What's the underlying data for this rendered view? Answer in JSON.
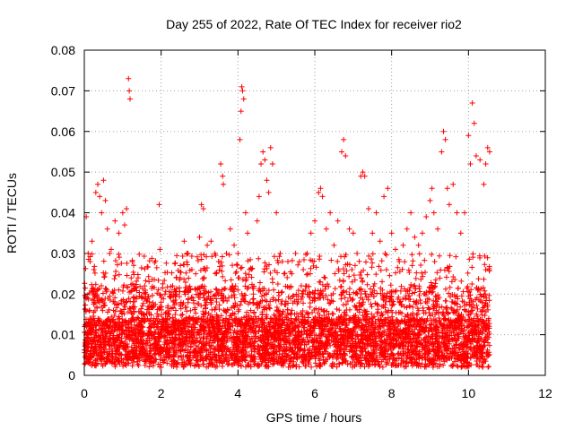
{
  "chart_data": {
    "type": "scatter",
    "title": "Day 255 of 2022, Rate Of TEC Index for receiver rio2",
    "xlabel": "GPS time / hours",
    "ylabel": "ROTI / TECUs",
    "xlim": [
      0,
      12
    ],
    "ylim": [
      0,
      0.08
    ],
    "x_ticks": [
      "0",
      "2",
      "4",
      "6",
      "8",
      "10",
      "12"
    ],
    "y_ticks": [
      "0",
      "0.01",
      "0.02",
      "0.03",
      "0.04",
      "0.05",
      "0.06",
      "0.07",
      "0.08"
    ],
    "x_tick_values": [
      0,
      2,
      4,
      6,
      8,
      10,
      12
    ],
    "y_tick_values": [
      0,
      0.01,
      0.02,
      0.03,
      0.04,
      0.05,
      0.06,
      0.07,
      0.08
    ],
    "grid": true,
    "marker": "+",
    "color": "#ff0000",
    "data_x_range": [
      0,
      10.55
    ],
    "series": [
      {
        "points": [
          [
            0.05,
            0.039
          ],
          [
            0.1,
            0.03
          ],
          [
            0.15,
            0.028
          ],
          [
            0.2,
            0.033
          ],
          [
            0.25,
            0.026
          ],
          [
            0.3,
            0.045
          ],
          [
            0.35,
            0.047
          ],
          [
            0.4,
            0.044
          ],
          [
            0.45,
            0.04
          ],
          [
            0.5,
            0.048
          ],
          [
            0.55,
            0.043
          ],
          [
            0.6,
            0.036
          ],
          [
            0.7,
            0.031
          ],
          [
            0.8,
            0.038
          ],
          [
            0.9,
            0.035
          ],
          [
            1.0,
            0.04
          ],
          [
            1.05,
            0.037
          ],
          [
            1.1,
            0.041
          ],
          [
            1.15,
            0.073
          ],
          [
            1.17,
            0.07
          ],
          [
            1.19,
            0.068
          ],
          [
            1.25,
            0.028
          ],
          [
            1.3,
            0.022
          ],
          [
            1.4,
            0.024
          ],
          [
            1.5,
            0.019
          ],
          [
            1.6,
            0.02
          ],
          [
            1.7,
            0.017
          ],
          [
            1.95,
            0.042
          ],
          [
            1.97,
            0.031
          ],
          [
            2.0,
            0.018
          ],
          [
            2.1,
            0.02
          ],
          [
            2.2,
            0.015
          ],
          [
            2.3,
            0.022
          ],
          [
            2.4,
            0.024
          ],
          [
            2.5,
            0.027
          ],
          [
            2.6,
            0.033
          ],
          [
            2.7,
            0.03
          ],
          [
            2.8,
            0.026
          ],
          [
            2.9,
            0.025
          ],
          [
            3.0,
            0.034
          ],
          [
            3.05,
            0.042
          ],
          [
            3.1,
            0.041
          ],
          [
            3.2,
            0.032
          ],
          [
            3.3,
            0.033
          ],
          [
            3.4,
            0.03
          ],
          [
            3.5,
            0.028
          ],
          [
            3.55,
            0.052
          ],
          [
            3.6,
            0.049
          ],
          [
            3.62,
            0.047
          ],
          [
            3.7,
            0.03
          ],
          [
            3.8,
            0.036
          ],
          [
            3.9,
            0.032
          ],
          [
            4.0,
            0.03
          ],
          [
            4.05,
            0.058
          ],
          [
            4.08,
            0.065
          ],
          [
            4.1,
            0.071
          ],
          [
            4.12,
            0.07
          ],
          [
            4.15,
            0.068
          ],
          [
            4.2,
            0.04
          ],
          [
            4.25,
            0.035
          ],
          [
            4.3,
            0.026
          ],
          [
            4.4,
            0.02
          ],
          [
            4.5,
            0.038
          ],
          [
            4.55,
            0.044
          ],
          [
            4.6,
            0.052
          ],
          [
            4.65,
            0.055
          ],
          [
            4.7,
            0.053
          ],
          [
            4.75,
            0.048
          ],
          [
            4.8,
            0.045
          ],
          [
            4.85,
            0.056
          ],
          [
            4.9,
            0.052
          ],
          [
            5.0,
            0.04
          ],
          [
            5.1,
            0.03
          ],
          [
            5.2,
            0.025
          ],
          [
            5.3,
            0.028
          ],
          [
            5.4,
            0.025
          ],
          [
            5.5,
            0.03
          ],
          [
            5.6,
            0.028
          ],
          [
            5.7,
            0.026
          ],
          [
            5.8,
            0.03
          ],
          [
            5.9,
            0.035
          ],
          [
            6.0,
            0.038
          ],
          [
            6.1,
            0.045
          ],
          [
            6.15,
            0.046
          ],
          [
            6.2,
            0.044
          ],
          [
            6.3,
            0.036
          ],
          [
            6.4,
            0.04
          ],
          [
            6.5,
            0.032
          ],
          [
            6.6,
            0.038
          ],
          [
            6.7,
            0.055
          ],
          [
            6.75,
            0.058
          ],
          [
            6.8,
            0.054
          ],
          [
            6.9,
            0.036
          ],
          [
            7.0,
            0.035
          ],
          [
            7.1,
            0.03
          ],
          [
            7.2,
            0.049
          ],
          [
            7.25,
            0.05
          ],
          [
            7.3,
            0.049
          ],
          [
            7.4,
            0.041
          ],
          [
            7.5,
            0.035
          ],
          [
            7.6,
            0.04
          ],
          [
            7.7,
            0.033
          ],
          [
            7.8,
            0.044
          ],
          [
            7.9,
            0.046
          ],
          [
            8.0,
            0.035
          ],
          [
            8.1,
            0.031
          ],
          [
            8.2,
            0.028
          ],
          [
            8.3,
            0.032
          ],
          [
            8.4,
            0.036
          ],
          [
            8.5,
            0.04
          ],
          [
            8.6,
            0.034
          ],
          [
            8.7,
            0.032
          ],
          [
            8.8,
            0.035
          ],
          [
            8.9,
            0.039
          ],
          [
            9.0,
            0.043
          ],
          [
            9.05,
            0.046
          ],
          [
            9.1,
            0.04
          ],
          [
            9.2,
            0.036
          ],
          [
            9.3,
            0.055
          ],
          [
            9.35,
            0.06
          ],
          [
            9.4,
            0.058
          ],
          [
            9.45,
            0.046
          ],
          [
            9.5,
            0.042
          ],
          [
            9.6,
            0.047
          ],
          [
            9.7,
            0.04
          ],
          [
            9.8,
            0.035
          ],
          [
            9.9,
            0.04
          ],
          [
            10.0,
            0.059
          ],
          [
            10.05,
            0.052
          ],
          [
            10.1,
            0.067
          ],
          [
            10.15,
            0.062
          ],
          [
            10.2,
            0.054
          ],
          [
            10.3,
            0.053
          ],
          [
            10.4,
            0.047
          ],
          [
            10.45,
            0.052
          ],
          [
            10.5,
            0.056
          ],
          [
            10.55,
            0.055
          ]
        ]
      }
    ]
  }
}
